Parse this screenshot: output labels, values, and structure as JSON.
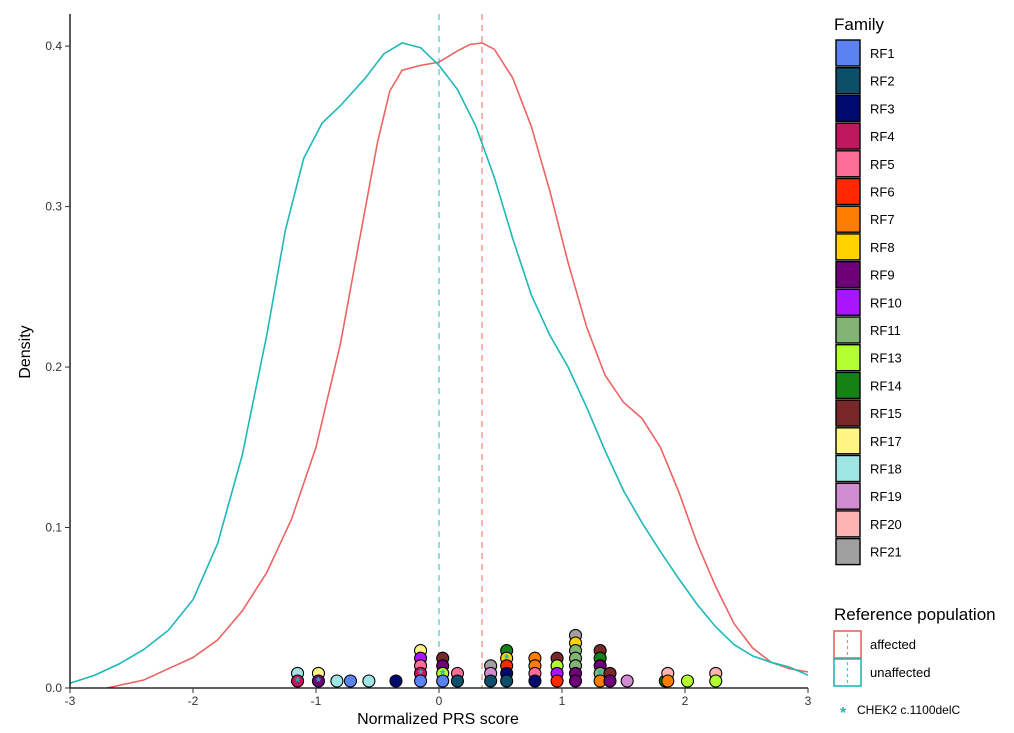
{
  "chart_data": {
    "type": "density-dotplot",
    "xlabel": "Normalized PRS score",
    "ylabel": "Density",
    "xlim": [
      -3,
      3
    ],
    "ylim": [
      0,
      0.42
    ],
    "x_ticks": [
      -3,
      -2,
      -1,
      0,
      1,
      2,
      3
    ],
    "x_tick_labels": [
      "-3",
      "-2",
      "-1",
      "0",
      "1",
      "2",
      "3"
    ],
    "y_ticks": [
      0.0,
      0.1,
      0.2,
      0.3,
      0.4
    ],
    "y_tick_labels": [
      "0.0",
      "0.1",
      "0.2",
      "0.3",
      "0.4"
    ],
    "grid": false,
    "legend_placement": "right",
    "series": [
      {
        "name": "affected",
        "color": "#ee6363",
        "mean_line": 0.35,
        "points": [
          [
            -2.7,
            0.0
          ],
          [
            -2.4,
            0.005
          ],
          [
            -2.2,
            0.012
          ],
          [
            -2.0,
            0.019
          ],
          [
            -1.8,
            0.03
          ],
          [
            -1.6,
            0.048
          ],
          [
            -1.4,
            0.072
          ],
          [
            -1.2,
            0.105
          ],
          [
            -1.0,
            0.15
          ],
          [
            -0.8,
            0.215
          ],
          [
            -0.65,
            0.278
          ],
          [
            -0.5,
            0.34
          ],
          [
            -0.4,
            0.372
          ],
          [
            -0.3,
            0.385
          ],
          [
            -0.15,
            0.388
          ],
          [
            0.0,
            0.39
          ],
          [
            0.15,
            0.397
          ],
          [
            0.25,
            0.401
          ],
          [
            0.35,
            0.402
          ],
          [
            0.45,
            0.398
          ],
          [
            0.6,
            0.38
          ],
          [
            0.75,
            0.35
          ],
          [
            0.9,
            0.31
          ],
          [
            1.05,
            0.265
          ],
          [
            1.2,
            0.225
          ],
          [
            1.35,
            0.195
          ],
          [
            1.5,
            0.178
          ],
          [
            1.65,
            0.168
          ],
          [
            1.8,
            0.15
          ],
          [
            1.95,
            0.122
          ],
          [
            2.1,
            0.09
          ],
          [
            2.25,
            0.063
          ],
          [
            2.4,
            0.04
          ],
          [
            2.55,
            0.025
          ],
          [
            2.7,
            0.016
          ],
          [
            2.85,
            0.012
          ],
          [
            3.0,
            0.01
          ]
        ]
      },
      {
        "name": "unaffected",
        "color": "#1fb8b8",
        "mean_line": 0.0,
        "points": [
          [
            -3.0,
            0.003
          ],
          [
            -2.8,
            0.008
          ],
          [
            -2.6,
            0.015
          ],
          [
            -2.4,
            0.024
          ],
          [
            -2.2,
            0.036
          ],
          [
            -2.0,
            0.055
          ],
          [
            -1.8,
            0.09
          ],
          [
            -1.6,
            0.145
          ],
          [
            -1.4,
            0.22
          ],
          [
            -1.25,
            0.285
          ],
          [
            -1.1,
            0.33
          ],
          [
            -0.95,
            0.352
          ],
          [
            -0.8,
            0.363
          ],
          [
            -0.6,
            0.38
          ],
          [
            -0.45,
            0.395
          ],
          [
            -0.3,
            0.402
          ],
          [
            -0.15,
            0.399
          ],
          [
            0.0,
            0.388
          ],
          [
            0.15,
            0.373
          ],
          [
            0.3,
            0.35
          ],
          [
            0.45,
            0.318
          ],
          [
            0.6,
            0.28
          ],
          [
            0.75,
            0.245
          ],
          [
            0.9,
            0.22
          ],
          [
            1.05,
            0.2
          ],
          [
            1.2,
            0.175
          ],
          [
            1.35,
            0.148
          ],
          [
            1.5,
            0.123
          ],
          [
            1.65,
            0.103
          ],
          [
            1.8,
            0.085
          ],
          [
            1.95,
            0.068
          ],
          [
            2.1,
            0.052
          ],
          [
            2.25,
            0.038
          ],
          [
            2.4,
            0.027
          ],
          [
            2.55,
            0.02
          ],
          [
            2.7,
            0.016
          ],
          [
            2.85,
            0.013
          ],
          [
            3.0,
            0.008
          ]
        ]
      }
    ],
    "families": [
      {
        "name": "RF1",
        "color": "#5a82f0"
      },
      {
        "name": "RF2",
        "color": "#0d4f6b"
      },
      {
        "name": "RF3",
        "color": "#000a6e"
      },
      {
        "name": "RF4",
        "color": "#c0185f"
      },
      {
        "name": "RF5",
        "color": "#ff6e96"
      },
      {
        "name": "RF6",
        "color": "#ff2800"
      },
      {
        "name": "RF7",
        "color": "#ff7d00"
      },
      {
        "name": "RF8",
        "color": "#ffd200"
      },
      {
        "name": "RF9",
        "color": "#6e0078"
      },
      {
        "name": "RF10",
        "color": "#aa14ff"
      },
      {
        "name": "RF11",
        "color": "#82b478"
      },
      {
        "name": "RF13",
        "color": "#b4ff32"
      },
      {
        "name": "RF14",
        "color": "#148214"
      },
      {
        "name": "RF15",
        "color": "#782828"
      },
      {
        "name": "RF17",
        "color": "#fff582"
      },
      {
        "name": "RF18",
        "color": "#a0e6e6"
      },
      {
        "name": "RF19",
        "color": "#d28cd2"
      },
      {
        "name": "RF20",
        "color": "#ffb4b4"
      },
      {
        "name": "RF21",
        "color": "#a0a0a0"
      }
    ],
    "dots": [
      {
        "x": -1.15,
        "family": "RF18",
        "stack": 1
      },
      {
        "x": -1.15,
        "family": "RF4",
        "stack": 0,
        "chek2": true
      },
      {
        "x": -0.98,
        "family": "RF17",
        "stack": 1
      },
      {
        "x": -0.98,
        "family": "RF9",
        "stack": 0,
        "chek2": true
      },
      {
        "x": -0.83,
        "family": "RF18",
        "stack": 0
      },
      {
        "x": -0.72,
        "family": "RF1",
        "stack": 0
      },
      {
        "x": -0.57,
        "family": "RF18",
        "stack": 0
      },
      {
        "x": -0.35,
        "family": "RF3",
        "stack": 0
      },
      {
        "x": -0.15,
        "family": "RF17",
        "stack": 4
      },
      {
        "x": -0.15,
        "family": "RF10",
        "stack": 3
      },
      {
        "x": -0.15,
        "family": "RF5",
        "stack": 2
      },
      {
        "x": -0.15,
        "family": "RF4",
        "stack": 1,
        "chek2": true
      },
      {
        "x": -0.15,
        "family": "RF1",
        "stack": 0
      },
      {
        "x": 0.03,
        "family": "RF15",
        "stack": 3
      },
      {
        "x": 0.03,
        "family": "RF9",
        "stack": 2
      },
      {
        "x": 0.03,
        "family": "RF13",
        "stack": 1,
        "chek2": true
      },
      {
        "x": 0.03,
        "family": "RF1",
        "stack": 0
      },
      {
        "x": 0.15,
        "family": "RF5",
        "stack": 1
      },
      {
        "x": 0.15,
        "family": "RF2",
        "stack": 0
      },
      {
        "x": 0.42,
        "family": "RF21",
        "stack": 2
      },
      {
        "x": 0.42,
        "family": "RF19",
        "stack": 1
      },
      {
        "x": 0.42,
        "family": "RF2",
        "stack": 0
      },
      {
        "x": 0.55,
        "family": "RF14",
        "stack": 4
      },
      {
        "x": 0.55,
        "family": "RF8",
        "stack": 3,
        "chek2": true
      },
      {
        "x": 0.55,
        "family": "RF6",
        "stack": 2
      },
      {
        "x": 0.55,
        "family": "RF3",
        "stack": 1
      },
      {
        "x": 0.55,
        "family": "RF2",
        "stack": 0
      },
      {
        "x": 0.78,
        "family": "RF7",
        "stack": 3
      },
      {
        "x": 0.78,
        "family": "RF7",
        "stack": 2
      },
      {
        "x": 0.78,
        "family": "RF5",
        "stack": 1
      },
      {
        "x": 0.78,
        "family": "RF3",
        "stack": 0
      },
      {
        "x": 0.96,
        "family": "RF15",
        "stack": 3
      },
      {
        "x": 0.96,
        "family": "RF13",
        "stack": 2
      },
      {
        "x": 0.96,
        "family": "RF10",
        "stack": 1
      },
      {
        "x": 0.96,
        "family": "RF6",
        "stack": 0
      },
      {
        "x": 1.11,
        "family": "RF21",
        "stack": 6
      },
      {
        "x": 1.11,
        "family": "RF8",
        "stack": 5
      },
      {
        "x": 1.11,
        "family": "RF11",
        "stack": 4
      },
      {
        "x": 1.11,
        "family": "RF11",
        "stack": 3
      },
      {
        "x": 1.11,
        "family": "RF11",
        "stack": 2
      },
      {
        "x": 1.11,
        "family": "RF9",
        "stack": 1
      },
      {
        "x": 1.11,
        "family": "RF9",
        "stack": 0
      },
      {
        "x": 1.31,
        "family": "RF15",
        "stack": 4
      },
      {
        "x": 1.31,
        "family": "RF14",
        "stack": 3
      },
      {
        "x": 1.31,
        "family": "RF9",
        "stack": 2
      },
      {
        "x": 1.31,
        "family": "RF11",
        "stack": 1,
        "chek2": true
      },
      {
        "x": 1.31,
        "family": "RF7",
        "stack": 0
      },
      {
        "x": 1.39,
        "family": "RF15",
        "stack": 1
      },
      {
        "x": 1.39,
        "family": "RF9",
        "stack": 0
      },
      {
        "x": 1.53,
        "family": "RF19",
        "stack": 0
      },
      {
        "x": 1.84,
        "family": "RF14",
        "stack": 0
      },
      {
        "x": 1.86,
        "family": "RF20",
        "stack": 1
      },
      {
        "x": 1.86,
        "family": "RF7",
        "stack": 0
      },
      {
        "x": 2.02,
        "family": "RF13",
        "stack": 0
      },
      {
        "x": 2.25,
        "family": "RF20",
        "stack": 1
      },
      {
        "x": 2.25,
        "family": "RF13",
        "stack": 0
      }
    ],
    "chek2_color": "#1fb8b8"
  },
  "legend": {
    "family_title": "Family",
    "reference_title": "Reference population",
    "chek2_label": "CHEK2 c.1100delC",
    "chek2_symbol": "*"
  }
}
